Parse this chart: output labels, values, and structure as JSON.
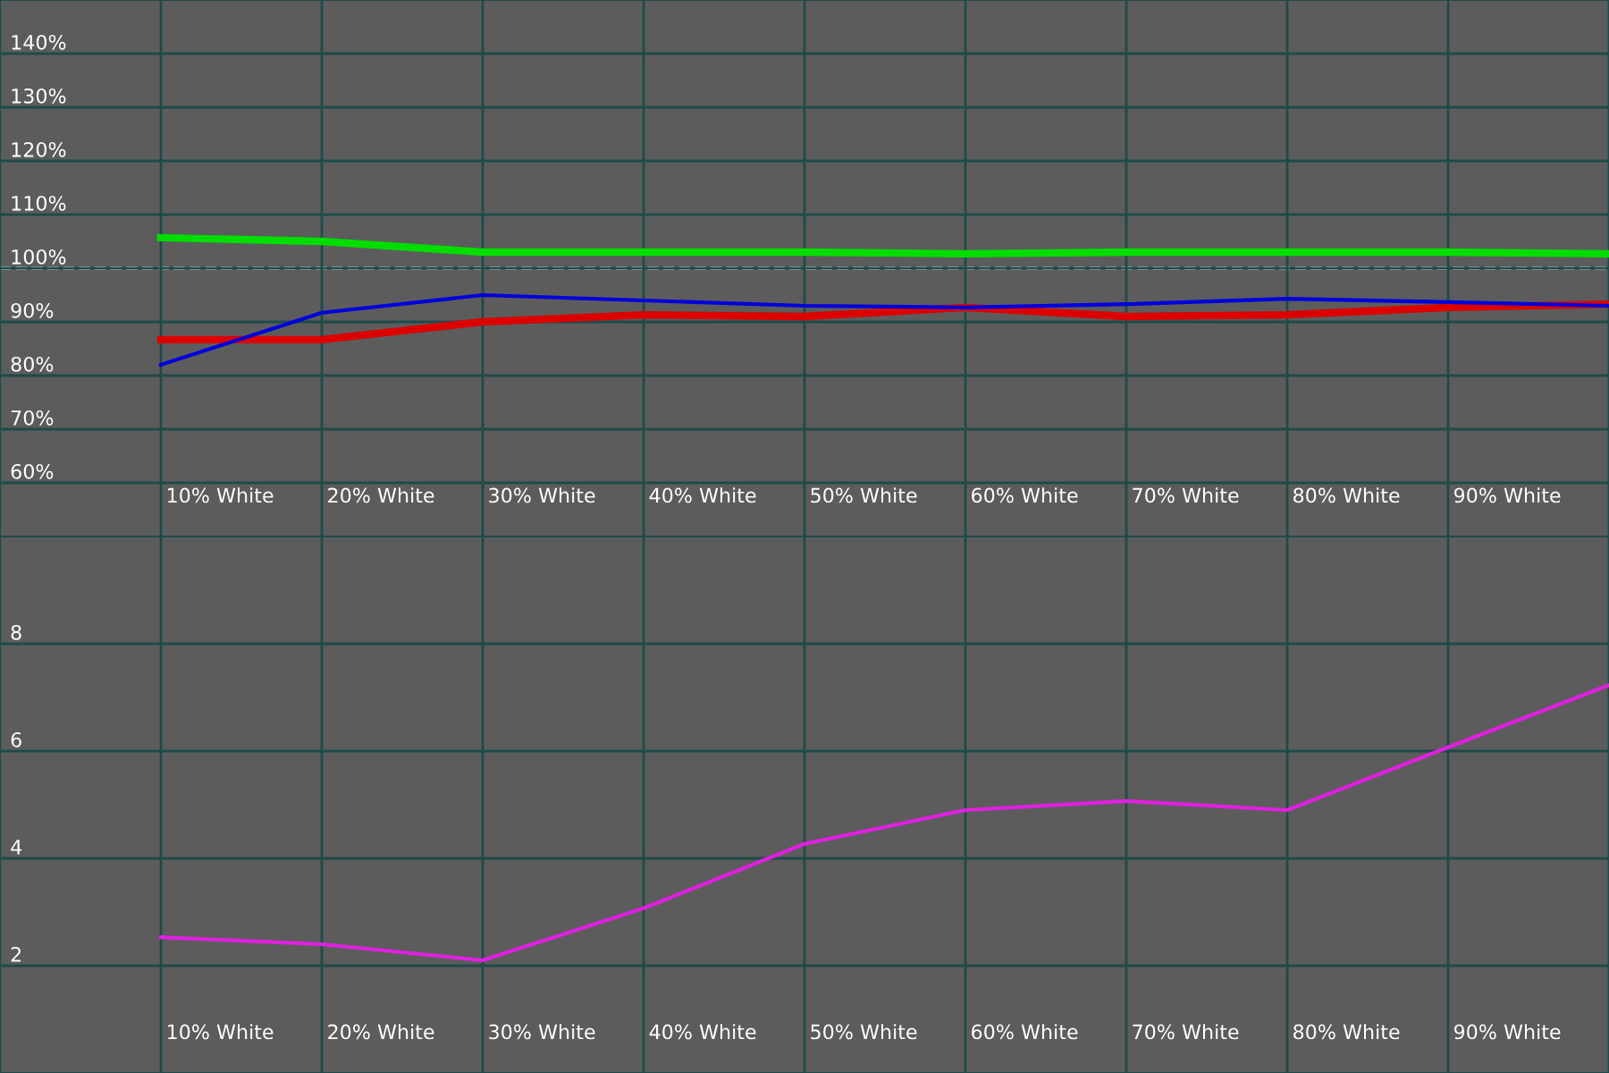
{
  "chart_data": [
    {
      "type": "line",
      "categories": [
        "10% White",
        "20% White",
        "30% White",
        "40% White",
        "50% White",
        "60% White",
        "70% White",
        "80% White",
        "90% White",
        null
      ],
      "series": [
        {
          "color": "#00dd00",
          "values": [
            105.7,
            105,
            103,
            103,
            103,
            102.7,
            103,
            103,
            103,
            102.7
          ]
        },
        {
          "color": "#dd0000",
          "values": [
            86.7,
            86.7,
            90,
            91.3,
            91,
            92.7,
            91,
            91.3,
            92.7,
            93.3
          ]
        },
        {
          "color": "#0000dd",
          "values": [
            82,
            91.7,
            95,
            94,
            93,
            92.7,
            93.3,
            94.3,
            93.7,
            93
          ]
        }
      ],
      "ylim": [
        50,
        150
      ],
      "yticks": [
        {
          "value": 60,
          "label": "60%"
        },
        {
          "value": 70,
          "label": "70%"
        },
        {
          "value": 80,
          "label": "80%"
        },
        {
          "value": 90,
          "label": "90%"
        },
        {
          "value": 100,
          "label": "100%"
        },
        {
          "value": 110,
          "label": "110%"
        },
        {
          "value": 120,
          "label": "120%"
        },
        {
          "value": 130,
          "label": "130%"
        },
        {
          "value": 140,
          "label": "140%"
        }
      ],
      "ref_lines": [
        {
          "axis": "y",
          "value": 100,
          "color": "#ffffff",
          "line_style": "dashed"
        }
      ],
      "grid": true,
      "marker": "none",
      "line_style": "solid"
    },
    {
      "type": "line",
      "categories": [
        "10% White",
        "20% White",
        "30% White",
        "40% White",
        "50% White",
        "60% White",
        "70% White",
        "80% White",
        "90% White",
        null
      ],
      "series": [
        {
          "color": "#e020e0",
          "values": [
            2.53,
            2.4,
            2.1,
            3.07,
            4.27,
            4.9,
            5.07,
            4.9,
            6.07,
            7.23
          ]
        }
      ],
      "ylim": [
        0,
        10
      ],
      "yticks": [
        2,
        4,
        6,
        8
      ],
      "grid": true,
      "marker": "none",
      "line_style": "solid"
    }
  ]
}
